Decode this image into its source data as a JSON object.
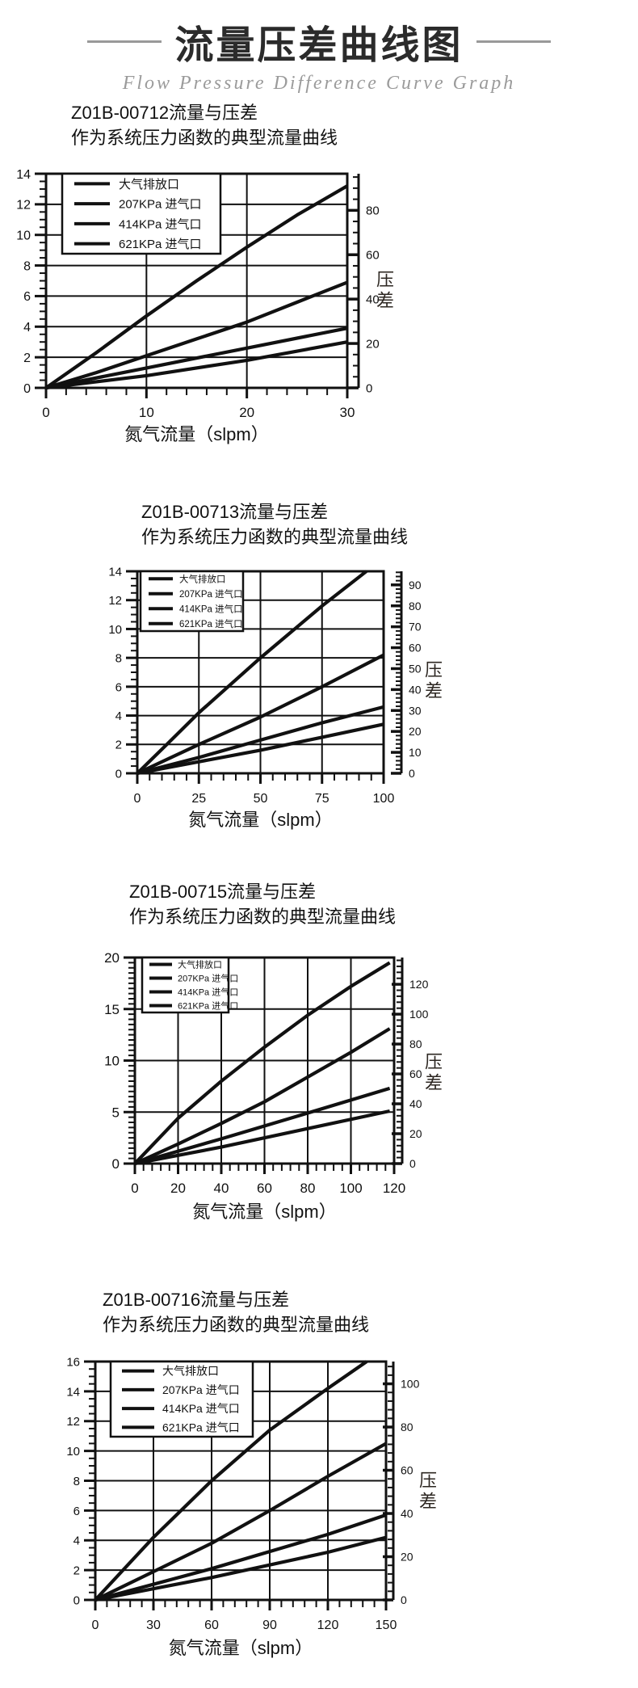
{
  "page": {
    "title": "流量压差曲线图",
    "subtitle": "Flow Pressure Difference Curve Graph"
  },
  "colors": {
    "ink": "#111111",
    "title_text": "#2b2b2b",
    "subtitle_gray": "#9b9b9b",
    "rule_gray": "#999999",
    "background": "#ffffff"
  },
  "chart_data": [
    {
      "type": "line",
      "model": "Z01B-00712",
      "title": "Z01B-00712流量与压差",
      "subtitle": "作为系统压力函数的典型流量曲线",
      "xlabel": "氮气流量（slpm）",
      "ylabel_right": "压差",
      "xlim": [
        0,
        30
      ],
      "ylim_left": [
        0,
        14
      ],
      "ylim_right": [
        0,
        96.5
      ],
      "x_major_ticks": [
        0,
        10,
        20,
        30
      ],
      "x_minor_step": 2,
      "y_major_ticks": [
        0,
        2,
        4,
        6,
        8,
        10,
        12,
        14
      ],
      "y_minor_step": 0.5,
      "right_major_ticks": [
        0,
        20,
        40,
        60,
        80
      ],
      "right_minor_step": 5,
      "grid": true,
      "legend_position": "top-left",
      "series": [
        {
          "name": "大气排放口",
          "points": [
            [
              0,
              0
            ],
            [
              5,
              2.3
            ],
            [
              10,
              4.7
            ],
            [
              15,
              7.0
            ],
            [
              20,
              9.2
            ],
            [
              25,
              11.3
            ],
            [
              30,
              13.2
            ]
          ]
        },
        {
          "name": "207KPa 进气口",
          "points": [
            [
              0,
              0
            ],
            [
              5,
              1.0
            ],
            [
              10,
              2.1
            ],
            [
              15,
              3.2
            ],
            [
              20,
              4.3
            ],
            [
              25,
              5.6
            ],
            [
              30,
              6.9
            ]
          ]
        },
        {
          "name": "414KPa 进气口",
          "points": [
            [
              0,
              0
            ],
            [
              10,
              1.3
            ],
            [
              20,
              2.6
            ],
            [
              30,
              3.9
            ]
          ]
        },
        {
          "name": "621KPa 进气口",
          "points": [
            [
              0,
              0
            ],
            [
              10,
              0.8
            ],
            [
              20,
              1.8
            ],
            [
              30,
              3.0
            ]
          ]
        }
      ]
    },
    {
      "type": "line",
      "model": "Z01B-00713",
      "title": "Z01B-00713流量与压差",
      "subtitle": "作为系统压力函数的典型流量曲线",
      "xlabel": "氮气流量（slpm）",
      "ylabel_right": "压差",
      "xlim": [
        0,
        100
      ],
      "ylim_left": [
        0,
        14
      ],
      "ylim_right": [
        0,
        96.5
      ],
      "x_major_ticks": [
        0,
        25,
        50,
        75,
        100
      ],
      "x_minor_step": 5,
      "y_major_ticks": [
        0,
        2,
        4,
        6,
        8,
        10,
        12,
        14
      ],
      "y_minor_step": 0.5,
      "right_major_ticks": [
        0,
        10,
        20,
        30,
        40,
        50,
        60,
        70,
        80,
        90
      ],
      "right_minor_step": 2,
      "grid": true,
      "legend_position": "top-left",
      "series": [
        {
          "name": "大气排放口",
          "points": [
            [
              0,
              0
            ],
            [
              12,
              2.0
            ],
            [
              25,
              4.2
            ],
            [
              50,
              8.0
            ],
            [
              75,
              11.6
            ],
            [
              93,
              14.0
            ]
          ]
        },
        {
          "name": "207KPa 进气口",
          "points": [
            [
              0,
              0
            ],
            [
              25,
              2.0
            ],
            [
              50,
              3.9
            ],
            [
              75,
              6.0
            ],
            [
              100,
              8.2
            ]
          ]
        },
        {
          "name": "414KPa 进气口",
          "points": [
            [
              0,
              0
            ],
            [
              25,
              1.1
            ],
            [
              50,
              2.3
            ],
            [
              75,
              3.5
            ],
            [
              100,
              4.6
            ]
          ]
        },
        {
          "name": "621KPa 进气口",
          "points": [
            [
              0,
              0
            ],
            [
              25,
              0.8
            ],
            [
              50,
              1.6
            ],
            [
              75,
              2.5
            ],
            [
              100,
              3.4
            ]
          ]
        }
      ]
    },
    {
      "type": "line",
      "model": "Z01B-00715",
      "title": "Z01B-00715流量与压差",
      "subtitle": "作为系统压力函数的典型流量曲线",
      "xlabel": "氮气流量（slpm）",
      "ylabel_right": "压差",
      "xlim": [
        0,
        120
      ],
      "ylim_left": [
        0,
        20
      ],
      "ylim_right": [
        0,
        137.9
      ],
      "x_major_ticks": [
        0,
        20,
        40,
        60,
        80,
        100,
        120
      ],
      "x_minor_step": 4,
      "y_major_ticks": [
        0,
        5,
        10,
        15,
        20
      ],
      "y_minor_step": 0.5,
      "right_major_ticks": [
        0,
        20,
        40,
        60,
        80,
        100,
        120
      ],
      "right_minor_step": 4,
      "grid": true,
      "legend_position": "top-left",
      "series": [
        {
          "name": "大气排放口",
          "points": [
            [
              0,
              0
            ],
            [
              20,
              4.4
            ],
            [
              40,
              8.0
            ],
            [
              60,
              11.3
            ],
            [
              80,
              14.4
            ],
            [
              100,
              17.2
            ],
            [
              118,
              19.5
            ]
          ]
        },
        {
          "name": "207KPa 进气口",
          "points": [
            [
              0,
              0
            ],
            [
              20,
              1.9
            ],
            [
              40,
              3.9
            ],
            [
              60,
              6.0
            ],
            [
              80,
              8.4
            ],
            [
              100,
              10.8
            ],
            [
              118,
              13.1
            ]
          ]
        },
        {
          "name": "414KPa 进气口",
          "points": [
            [
              0,
              0
            ],
            [
              40,
              2.4
            ],
            [
              80,
              4.9
            ],
            [
              118,
              7.3
            ]
          ]
        },
        {
          "name": "621KPa 进气口",
          "points": [
            [
              0,
              0
            ],
            [
              40,
              1.6
            ],
            [
              80,
              3.4
            ],
            [
              118,
              5.1
            ]
          ]
        }
      ]
    },
    {
      "type": "line",
      "model": "Z01B-00716",
      "title": "Z01B-00716流量与压差",
      "subtitle": "作为系统压力函数的典型流量曲线",
      "xlabel": "氮气流量（slpm）",
      "ylabel_right": "压差",
      "xlim": [
        0,
        150
      ],
      "ylim_left": [
        0,
        16
      ],
      "ylim_right": [
        0,
        110.3
      ],
      "x_major_ticks": [
        0,
        30,
        60,
        90,
        120,
        150
      ],
      "x_minor_step": 6,
      "y_major_ticks": [
        0,
        2,
        4,
        6,
        8,
        10,
        12,
        14,
        16
      ],
      "y_minor_step": 0.5,
      "right_major_ticks": [
        0,
        20,
        40,
        60,
        80,
        100
      ],
      "right_minor_step": 4,
      "grid": true,
      "legend_position": "top-left",
      "series": [
        {
          "name": "大气排放口",
          "points": [
            [
              0,
              0
            ],
            [
              30,
              4.2
            ],
            [
              60,
              8.0
            ],
            [
              90,
              11.4
            ],
            [
              120,
              14.2
            ],
            [
              140,
              16.0
            ]
          ]
        },
        {
          "name": "207KPa 进气口",
          "points": [
            [
              0,
              0
            ],
            [
              30,
              1.9
            ],
            [
              60,
              3.8
            ],
            [
              90,
              6.0
            ],
            [
              120,
              8.3
            ],
            [
              150,
              10.5
            ]
          ]
        },
        {
          "name": "414KPa 进气口",
          "points": [
            [
              0,
              0
            ],
            [
              60,
              2.1
            ],
            [
              120,
              4.4
            ],
            [
              150,
              5.7
            ]
          ]
        },
        {
          "name": "621KPa 进气口",
          "points": [
            [
              0,
              0
            ],
            [
              60,
              1.5
            ],
            [
              120,
              3.2
            ],
            [
              150,
              4.2
            ]
          ]
        }
      ]
    }
  ]
}
